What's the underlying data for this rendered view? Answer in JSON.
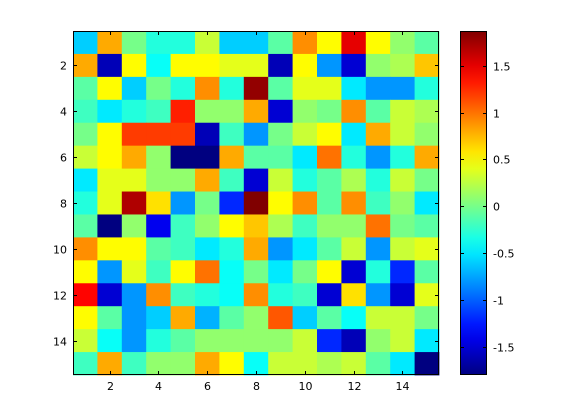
{
  "chart_data": {
    "type": "heatmap",
    "title": "",
    "xlabel": "",
    "ylabel": "",
    "colormap": "jet",
    "rows": 15,
    "cols": 15,
    "x_tick_labels": [
      "2",
      "4",
      "6",
      "8",
      "10",
      "12",
      "14"
    ],
    "y_tick_labels": [
      "2",
      "4",
      "6",
      "8",
      "10",
      "12",
      "14"
    ],
    "x_ticks": [
      2,
      4,
      6,
      8,
      10,
      12,
      14
    ],
    "y_ticks": [
      2,
      4,
      6,
      8,
      10,
      12,
      14
    ],
    "xlim": [
      0.5,
      15.5
    ],
    "ylim": [
      0.5,
      15.5
    ],
    "y_direction": "reverse",
    "clim": [
      -1.8,
      1.87
    ],
    "colorbar": {
      "tick_values": [
        -1.5,
        -1,
        -0.5,
        0,
        0.5,
        1,
        1.5
      ],
      "tick_labels": [
        "-1.5",
        "-1",
        "-0.5",
        "0",
        "0.5",
        "1",
        "1.5"
      ]
    },
    "values": [
      [
        -0.6,
        0.8,
        0.0,
        -0.3,
        -0.3,
        0.3,
        -0.6,
        -0.6,
        -0.1,
        0.9,
        0.5,
        1.5,
        0.5,
        0.1,
        -0.1
      ],
      [
        0.8,
        -1.6,
        0.5,
        -0.4,
        0.5,
        0.5,
        0.4,
        0.4,
        -1.6,
        0.5,
        -0.8,
        -1.5,
        0.1,
        0.2,
        0.7
      ],
      [
        -0.1,
        0.5,
        -0.6,
        0.0,
        -0.3,
        0.9,
        -0.3,
        1.8,
        -0.1,
        0.4,
        0.4,
        -0.5,
        -0.8,
        -0.8,
        -0.3
      ],
      [
        -0.2,
        -0.5,
        -0.3,
        -0.2,
        1.3,
        0.1,
        0.1,
        0.8,
        -1.5,
        0.1,
        0.0,
        0.9,
        -0.1,
        0.3,
        0.2
      ],
      [
        0.0,
        0.5,
        1.2,
        1.2,
        1.2,
        -1.6,
        -0.2,
        -0.8,
        0.0,
        0.3,
        0.5,
        -0.5,
        0.8,
        0.3,
        0.1
      ],
      [
        0.3,
        0.5,
        0.8,
        0.1,
        -1.8,
        -1.8,
        0.8,
        -0.1,
        -0.1,
        -0.5,
        1.0,
        -0.3,
        -0.8,
        -0.3,
        0.8
      ],
      [
        -0.5,
        0.4,
        0.4,
        0.1,
        0.1,
        0.8,
        -0.2,
        -1.5,
        0.3,
        -0.3,
        -0.1,
        0.2,
        -0.3,
        0.3,
        0.0
      ],
      [
        -0.3,
        0.4,
        1.7,
        0.6,
        -0.8,
        0.0,
        -1.2,
        1.9,
        0.5,
        0.9,
        -0.1,
        0.9,
        -0.2,
        0.1,
        -0.5
      ],
      [
        -0.1,
        -1.8,
        0.1,
        -1.4,
        -0.2,
        0.1,
        0.5,
        0.7,
        0.2,
        -0.2,
        0.1,
        0.1,
        1.0,
        0.0,
        -0.1
      ],
      [
        0.9,
        0.5,
        0.5,
        -0.1,
        -0.2,
        -0.5,
        -0.3,
        0.8,
        -0.8,
        -0.5,
        -0.1,
        0.3,
        -0.8,
        0.3,
        0.4
      ],
      [
        0.5,
        -0.8,
        0.4,
        -0.2,
        0.5,
        1.0,
        -0.4,
        0.0,
        -0.5,
        0.0,
        0.5,
        -1.5,
        -0.3,
        -1.2,
        -0.1
      ],
      [
        1.4,
        -1.5,
        -0.8,
        0.9,
        -0.2,
        -0.3,
        -0.4,
        0.9,
        -0.3,
        -0.2,
        -1.5,
        0.6,
        -0.8,
        -1.5,
        0.4
      ],
      [
        0.5,
        -0.1,
        -0.8,
        -0.6,
        0.8,
        -0.7,
        -0.1,
        0.1,
        1.1,
        -0.6,
        -0.1,
        -0.4,
        0.3,
        0.3,
        0.0
      ],
      [
        0.3,
        -0.4,
        -0.8,
        -0.3,
        -0.1,
        0.1,
        0.1,
        0.1,
        0.1,
        0.3,
        -1.2,
        -1.6,
        0.1,
        0.3,
        -0.5
      ],
      [
        -0.2,
        0.8,
        -0.2,
        0.1,
        0.1,
        0.8,
        0.5,
        -0.4,
        0.3,
        0.3,
        0.2,
        0.3,
        -0.1,
        -0.5,
        -1.9
      ]
    ]
  }
}
